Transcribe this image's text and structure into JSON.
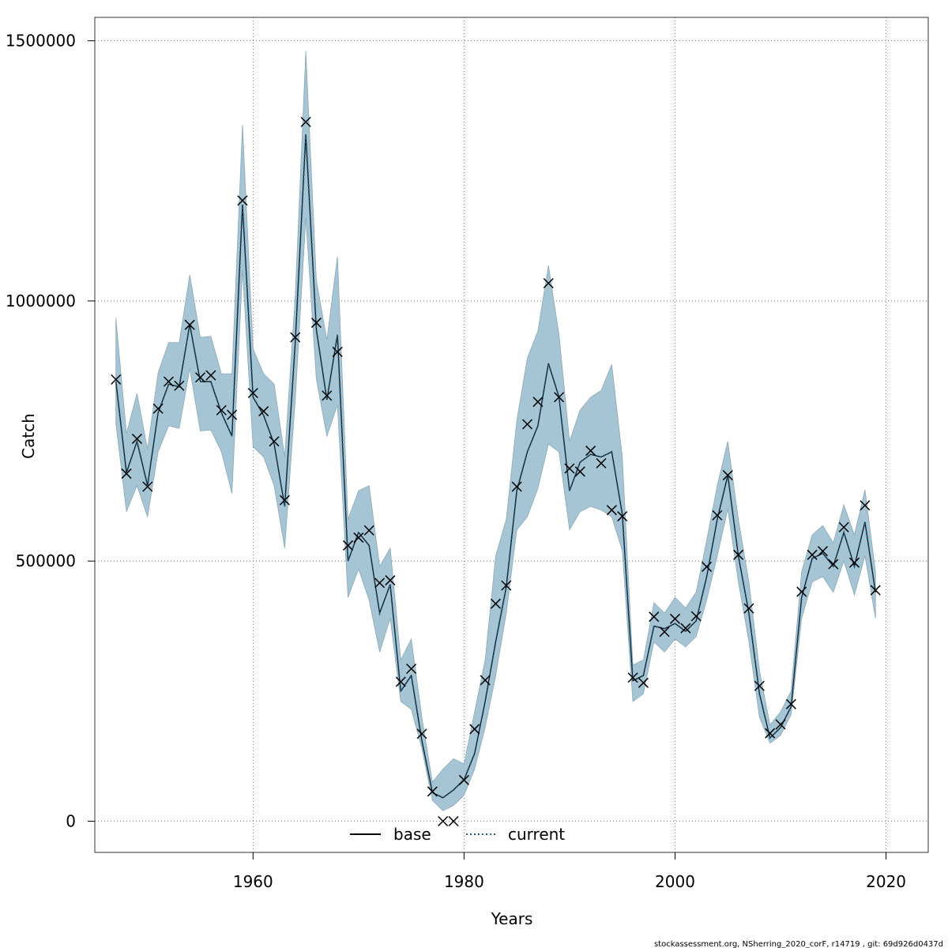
{
  "chart_data": {
    "type": "line",
    "xlabel": "Years",
    "ylabel": "Catch",
    "xlim": [
      1945,
      2024
    ],
    "ylim": [
      -60000,
      1545000
    ],
    "x_ticks": [
      1960,
      1980,
      2000,
      2020
    ],
    "y_ticks": [
      0,
      500000,
      1000000,
      1500000
    ],
    "x_tick_labels": [
      "1960",
      "1980",
      "2000",
      "2020"
    ],
    "y_tick_labels": [
      "0",
      "500000",
      "1000000",
      "1500000"
    ],
    "grid": true,
    "legend_position": "bottom-center",
    "colors": {
      "band": "#a5c5d5",
      "band_edge": "#8aa8b8",
      "base": "#000000",
      "current": "#1f5d80",
      "grid": "#555555"
    },
    "observations": {
      "name": "",
      "x": [
        1947,
        1948,
        1949,
        1950,
        1951,
        1952,
        1953,
        1954,
        1955,
        1956,
        1957,
        1958,
        1959,
        1960,
        1961,
        1962,
        1963,
        1964,
        1965,
        1966,
        1967,
        1968,
        1969,
        1970,
        1971,
        1972,
        1973,
        1974,
        1975,
        1976,
        1977,
        1978,
        1979,
        1980,
        1981,
        1982,
        1983,
        1984,
        1985,
        1986,
        1987,
        1988,
        1989,
        1990,
        1991,
        1992,
        1993,
        1994,
        1995,
        1996,
        1997,
        1998,
        1999,
        2000,
        2001,
        2002,
        2003,
        2004,
        2005,
        2006,
        2007,
        2008,
        2009,
        2010,
        2011,
        2012,
        2013,
        2014,
        2015,
        2016,
        2017,
        2018,
        2019
      ],
      "y": [
        849000,
        668000,
        735000,
        643000,
        793000,
        845000,
        837000,
        954000,
        853000,
        857000,
        790000,
        781000,
        1193000,
        823000,
        788000,
        730000,
        617000,
        930000,
        1344000,
        958000,
        818000,
        902000,
        530000,
        545000,
        559000,
        458000,
        463000,
        268000,
        293000,
        168000,
        57000,
        0,
        0,
        79000,
        177000,
        271000,
        418000,
        453000,
        643000,
        763000,
        806000,
        1034000,
        815000,
        678000,
        672000,
        712000,
        688000,
        598000,
        586000,
        276000,
        266000,
        393000,
        364000,
        389000,
        371000,
        394000,
        489000,
        588000,
        665000,
        512000,
        409000,
        260000,
        169000,
        186000,
        225000,
        441000,
        512000,
        519000,
        494000,
        565000,
        497000,
        607000,
        444000
      ]
    },
    "series": [
      {
        "name": "base",
        "x": [
          1947,
          1948,
          1949,
          1950,
          1951,
          1952,
          1953,
          1954,
          1955,
          1956,
          1957,
          1958,
          1959,
          1960,
          1961,
          1962,
          1963,
          1964,
          1965,
          1966,
          1967,
          1968,
          1969,
          1970,
          1971,
          1972,
          1973,
          1974,
          1975,
          1976,
          1977,
          1978,
          1979,
          1980,
          1981,
          1982,
          1983,
          1984,
          1985,
          1986,
          1987,
          1988,
          1989,
          1990,
          1991,
          1992,
          1993,
          1994,
          1995,
          1996,
          1997,
          1998,
          1999,
          2000,
          2001,
          2002,
          2003,
          2004,
          2005,
          2006,
          2007,
          2008,
          2009,
          2010,
          2011,
          2012,
          2013,
          2014,
          2015,
          2016,
          2017,
          2018,
          2019
        ],
        "y": [
          845000,
          670000,
          730000,
          645000,
          785000,
          840000,
          835000,
          955000,
          845000,
          845000,
          785000,
          740000,
          1185000,
          815000,
          780000,
          725000,
          605000,
          920000,
          1320000,
          945000,
          810000,
          935000,
          500000,
          555000,
          530000,
          400000,
          455000,
          250000,
          280000,
          155000,
          55000,
          45000,
          60000,
          80000,
          130000,
          230000,
          345000,
          450000,
          635000,
          710000,
          760000,
          880000,
          815000,
          635000,
          690000,
          705000,
          700000,
          710000,
          590000,
          270000,
          280000,
          375000,
          370000,
          380000,
          365000,
          385000,
          470000,
          580000,
          665000,
          510000,
          400000,
          245000,
          160000,
          180000,
          220000,
          430000,
          505000,
          515000,
          490000,
          555000,
          490000,
          575000,
          440000
        ]
      },
      {
        "name": "current",
        "x": [
          1947,
          1948,
          1949,
          1950,
          1951,
          1952,
          1953,
          1954,
          1955,
          1956,
          1957,
          1958,
          1959,
          1960,
          1961,
          1962,
          1963,
          1964,
          1965,
          1966,
          1967,
          1968,
          1969,
          1970,
          1971,
          1972,
          1973,
          1974,
          1975,
          1976,
          1977,
          1978,
          1979,
          1980,
          1981,
          1982,
          1983,
          1984,
          1985,
          1986,
          1987,
          1988,
          1989,
          1990,
          1991,
          1992,
          1993,
          1994,
          1995,
          1996,
          1997,
          1998,
          1999,
          2000,
          2001,
          2002,
          2003,
          2004,
          2005,
          2006,
          2007,
          2008,
          2009,
          2010,
          2011,
          2012,
          2013,
          2014,
          2015,
          2016,
          2017,
          2018,
          2019
        ],
        "y": [
          845000,
          670000,
          730000,
          645000,
          785000,
          840000,
          835000,
          955000,
          845000,
          845000,
          785000,
          740000,
          1185000,
          815000,
          780000,
          725000,
          605000,
          920000,
          1320000,
          945000,
          810000,
          935000,
          500000,
          555000,
          530000,
          400000,
          455000,
          250000,
          280000,
          155000,
          55000,
          45000,
          60000,
          80000,
          130000,
          230000,
          345000,
          450000,
          635000,
          710000,
          760000,
          880000,
          815000,
          635000,
          690000,
          705000,
          700000,
          710000,
          590000,
          270000,
          280000,
          375000,
          370000,
          380000,
          365000,
          385000,
          470000,
          580000,
          665000,
          510000,
          400000,
          245000,
          160000,
          180000,
          220000,
          430000,
          505000,
          515000,
          490000,
          555000,
          490000,
          575000,
          440000
        ]
      }
    ],
    "band": {
      "x": [
        1947,
        1948,
        1949,
        1950,
        1951,
        1952,
        1953,
        1954,
        1955,
        1956,
        1957,
        1958,
        1959,
        1960,
        1961,
        1962,
        1963,
        1964,
        1965,
        1966,
        1967,
        1968,
        1969,
        1970,
        1971,
        1972,
        1973,
        1974,
        1975,
        1976,
        1977,
        1978,
        1979,
        1980,
        1981,
        1982,
        1983,
        1984,
        1985,
        1986,
        1987,
        1988,
        1989,
        1990,
        1991,
        1992,
        1993,
        1994,
        1995,
        1996,
        1997,
        1998,
        1999,
        2000,
        2001,
        2002,
        2003,
        2004,
        2005,
        2006,
        2007,
        2008,
        2009,
        2010,
        2011,
        2012,
        2013,
        2014,
        2015,
        2016,
        2017,
        2018,
        2019
      ],
      "upper": [
        967000,
        745000,
        822000,
        715000,
        862000,
        920000,
        920000,
        1050000,
        930000,
        932000,
        860000,
        860000,
        1338000,
        908000,
        860000,
        840000,
        700000,
        1010000,
        1480000,
        1040000,
        925000,
        1085000,
        580000,
        635000,
        645000,
        490000,
        525000,
        310000,
        350000,
        200000,
        75000,
        100000,
        120000,
        110000,
        210000,
        310000,
        510000,
        580000,
        770000,
        890000,
        942000,
        1068000,
        935000,
        730000,
        790000,
        815000,
        828000,
        878000,
        700000,
        300000,
        310000,
        420000,
        400000,
        430000,
        410000,
        440000,
        540000,
        645000,
        730000,
        580000,
        460000,
        290000,
        185000,
        210000,
        250000,
        480000,
        550000,
        568000,
        535000,
        608000,
        550000,
        637000,
        480000
      ],
      "lower": [
        765000,
        595000,
        645000,
        585000,
        710000,
        760000,
        755000,
        870000,
        750000,
        752000,
        710000,
        630000,
        1060000,
        720000,
        700000,
        645000,
        525000,
        810000,
        1160000,
        850000,
        740000,
        800000,
        430000,
        485000,
        425000,
        325000,
        390000,
        230000,
        215000,
        140000,
        40000,
        20000,
        30000,
        50000,
        100000,
        180000,
        280000,
        400000,
        560000,
        585000,
        640000,
        725000,
        710000,
        560000,
        595000,
        605000,
        598000,
        585000,
        520000,
        230000,
        245000,
        345000,
        325000,
        350000,
        335000,
        355000,
        425000,
        510000,
        600000,
        460000,
        345000,
        200000,
        150000,
        165000,
        205000,
        390000,
        460000,
        470000,
        440000,
        500000,
        435000,
        510000,
        390000
      ]
    },
    "legend": [
      "base",
      "current"
    ],
    "footer": "stockassessment.org, NSherring_2020_corF, r14719 , git: 69d926d0437d"
  }
}
